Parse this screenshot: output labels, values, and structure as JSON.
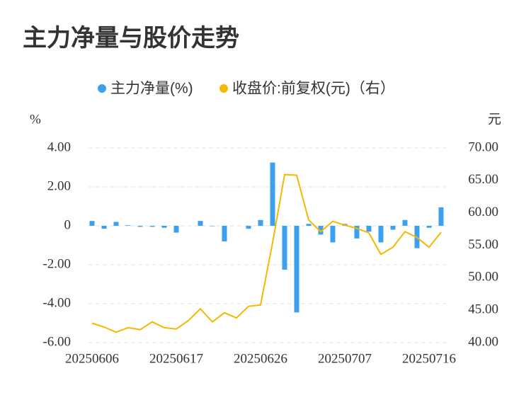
{
  "chart_data": {
    "type": "bar",
    "title": "主力净量与股价走势",
    "y_unit": "%",
    "y2_unit": "元",
    "categories": [
      "20250606",
      null,
      null,
      null,
      null,
      null,
      null,
      "20250617",
      null,
      null,
      null,
      null,
      null,
      null,
      "20250626",
      null,
      null,
      null,
      null,
      null,
      null,
      "20250707",
      null,
      null,
      null,
      null,
      null,
      null,
      "20250716",
      null
    ],
    "series": [
      {
        "name": "主力净量(%)",
        "type": "bar",
        "color": "#3ba0f0",
        "values": [
          0.25,
          -0.15,
          0.2,
          0.03,
          -0.05,
          -0.05,
          -0.1,
          -0.35,
          0,
          0.25,
          -0.02,
          -0.8,
          0,
          -0.15,
          0.3,
          3.25,
          -2.25,
          -4.45,
          0.1,
          -0.45,
          -0.85,
          0.1,
          -0.65,
          -0.3,
          -0.85,
          -0.2,
          0.3,
          -1.15,
          -0.1,
          0.95
        ]
      },
      {
        "name": "收盘价:前复权(元)（右）",
        "type": "line",
        "axis": "y2",
        "color": "#f5b800",
        "values": [
          43.0,
          42.4,
          41.6,
          42.3,
          42.0,
          43.2,
          42.3,
          42.1,
          43.4,
          45.2,
          43.2,
          44.6,
          43.8,
          45.6,
          45.8,
          55.4,
          65.9,
          65.8,
          58.9,
          57.1,
          58.7,
          58.1,
          57.6,
          56.9,
          53.6,
          54.7,
          57.1,
          56.2,
          54.7,
          57.0
        ]
      }
    ],
    "ylim": [
      -6,
      4
    ],
    "yticks": [
      {
        "value": -6,
        "label": "-6.00"
      },
      {
        "value": -4,
        "label": "-4.00"
      },
      {
        "value": -2,
        "label": "-2.00"
      },
      0,
      {
        "value": 2,
        "label": "2.00"
      },
      {
        "value": 4,
        "label": "4.00"
      }
    ],
    "y2lim": [
      40,
      70
    ],
    "y2ticks": [
      {
        "value": 40,
        "label": "40.00"
      },
      {
        "value": 45,
        "label": "45.00"
      },
      {
        "value": 50,
        "label": "50.00"
      },
      {
        "value": 55,
        "label": "55.00"
      },
      {
        "value": 60,
        "label": "60.00"
      },
      {
        "value": 65,
        "label": "65.00"
      },
      {
        "value": 70,
        "label": "70.00"
      }
    ],
    "grid": true
  }
}
